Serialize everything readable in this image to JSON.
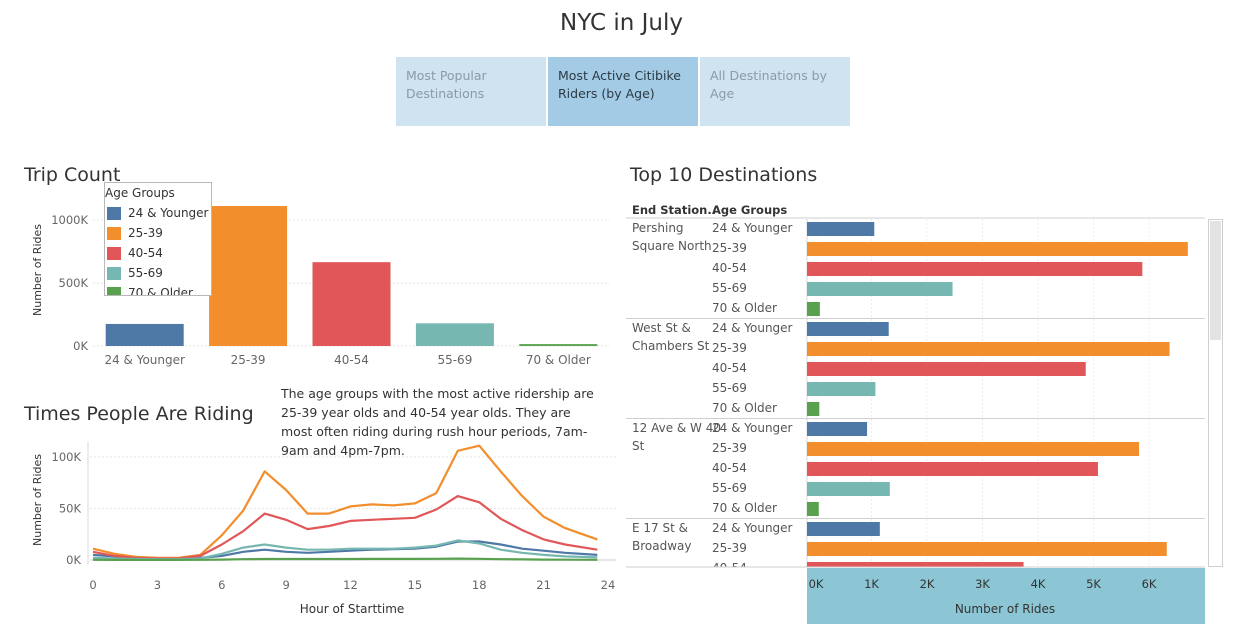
{
  "page": {
    "title": "NYC in July"
  },
  "tabs": [
    {
      "label": "Most Popular Destinations",
      "active": false
    },
    {
      "label": "Most Active Citibike Riders (by Age)",
      "active": true
    },
    {
      "label": "All Destinations by Age",
      "active": false
    }
  ],
  "colors": {
    "24 & Younger": "#4e79a7",
    "25-39": "#f28e2b",
    "40-54": "#e15759",
    "55-69": "#76b7b2",
    "70 & Older": "#59a14f",
    "axis_band": "#8cc5d4"
  },
  "trip_count": {
    "title": "Trip Count",
    "legend_title": "Age Groups",
    "legend_items": [
      "24 & Younger",
      "25-39",
      "40-54",
      "55-69",
      "70 & Older"
    ]
  },
  "times": {
    "title": "Times People Are Riding"
  },
  "annotation": "The age groups with the most active ridership are 25-39 year olds and 40-54 year olds. They are most often riding during rush hour periods, 7am-9am and 4pm-7pm.",
  "destinations": {
    "title": "Top 10 Destinations",
    "col_station": "End Station..",
    "col_age": "Age Groups"
  },
  "chart_data": [
    {
      "type": "bar",
      "title": "Trip Count",
      "ylabel": "Number of Rides",
      "xlabel": "",
      "categories": [
        "24 & Younger",
        "25-39",
        "40-54",
        "55-69",
        "70 & Older"
      ],
      "values": [
        175000,
        1110000,
        665000,
        180000,
        15000
      ],
      "ylim": [
        0,
        1150000
      ],
      "yticks": [
        0,
        500000,
        1000000
      ],
      "ytick_labels": [
        "0K",
        "500K",
        "1000K"
      ],
      "grid": true
    },
    {
      "type": "line",
      "title": "Times People Are Riding",
      "xlabel": "Hour of Starttime",
      "ylabel": "Number of Rides",
      "xlim": [
        0,
        24
      ],
      "ylim": [
        -3000,
        117000
      ],
      "xticks": [
        0,
        3,
        6,
        9,
        12,
        15,
        18,
        21,
        24
      ],
      "yticks": [
        0,
        50000,
        100000
      ],
      "ytick_labels": [
        "0K",
        "50K",
        "100K"
      ],
      "x": [
        0,
        1,
        2,
        3,
        4,
        5,
        6,
        7,
        8,
        9,
        10,
        11,
        12,
        13,
        14,
        15,
        16,
        17,
        18,
        19,
        20,
        21,
        22,
        23.5
      ],
      "series": [
        {
          "name": "24 & Younger",
          "values": [
            5000,
            3500,
            2000,
            1200,
            1000,
            2000,
            4000,
            8000,
            10000,
            8000,
            7000,
            8000,
            9000,
            10000,
            10500,
            11000,
            13000,
            18000,
            18000,
            15000,
            11000,
            9000,
            7000,
            5000
          ]
        },
        {
          "name": "25-39",
          "values": [
            11000,
            6000,
            3000,
            2000,
            2000,
            5000,
            24000,
            48000,
            86000,
            68000,
            45000,
            45000,
            52000,
            54000,
            53000,
            55000,
            65000,
            106000,
            111000,
            86000,
            62000,
            42000,
            31000,
            20000
          ]
        },
        {
          "name": "40-54",
          "values": [
            8000,
            4000,
            2000,
            1500,
            1500,
            4000,
            15000,
            28000,
            45000,
            39000,
            30000,
            33000,
            38000,
            39000,
            40000,
            41000,
            49000,
            62000,
            56000,
            40000,
            29000,
            20000,
            15000,
            10000
          ]
        },
        {
          "name": "55-69",
          "values": [
            2000,
            1500,
            1000,
            800,
            800,
            1500,
            6000,
            12000,
            15000,
            12000,
            10000,
            10000,
            11000,
            11000,
            11000,
            12000,
            14000,
            19000,
            16000,
            10000,
            7000,
            5000,
            3500,
            2500
          ]
        },
        {
          "name": "70 & Older",
          "values": [
            200,
            100,
            100,
            100,
            100,
            200,
            400,
            800,
            1000,
            1000,
            1000,
            1000,
            1000,
            1100,
            1100,
            1100,
            1200,
            1400,
            1200,
            800,
            600,
            400,
            300,
            200
          ]
        }
      ]
    },
    {
      "type": "bar",
      "orientation": "horizontal",
      "title": "Top 10 Destinations",
      "xlabel": "Number of Rides",
      "xlim": [
        0,
        7000
      ],
      "xticks": [
        0,
        1000,
        2000,
        3000,
        4000,
        5000,
        6000
      ],
      "xtick_labels": [
        "0K",
        "1K",
        "2K",
        "3K",
        "4K",
        "5K",
        "6K"
      ],
      "groups": [
        {
          "station": "Pershing Square North",
          "values": {
            "24 & Younger": 1050,
            "25-39": 6700,
            "40-54": 5880,
            "55-69": 2460,
            "70 & Older": 70
          }
        },
        {
          "station": "West St & Chambers St",
          "values": {
            "24 & Younger": 1310,
            "25-39": 6370,
            "40-54": 4860,
            "55-69": 1070,
            "70 & Older": 60
          }
        },
        {
          "station": "12 Ave & W 40 St",
          "values": {
            "24 & Younger": 920,
            "25-39": 5820,
            "40-54": 5080,
            "55-69": 1330,
            "70 & Older": 50
          }
        },
        {
          "station": "E 17 St & Broadway",
          "values": {
            "24 & Younger": 1150,
            "25-39": 6320,
            "40-54": 3740
          }
        }
      ]
    }
  ]
}
